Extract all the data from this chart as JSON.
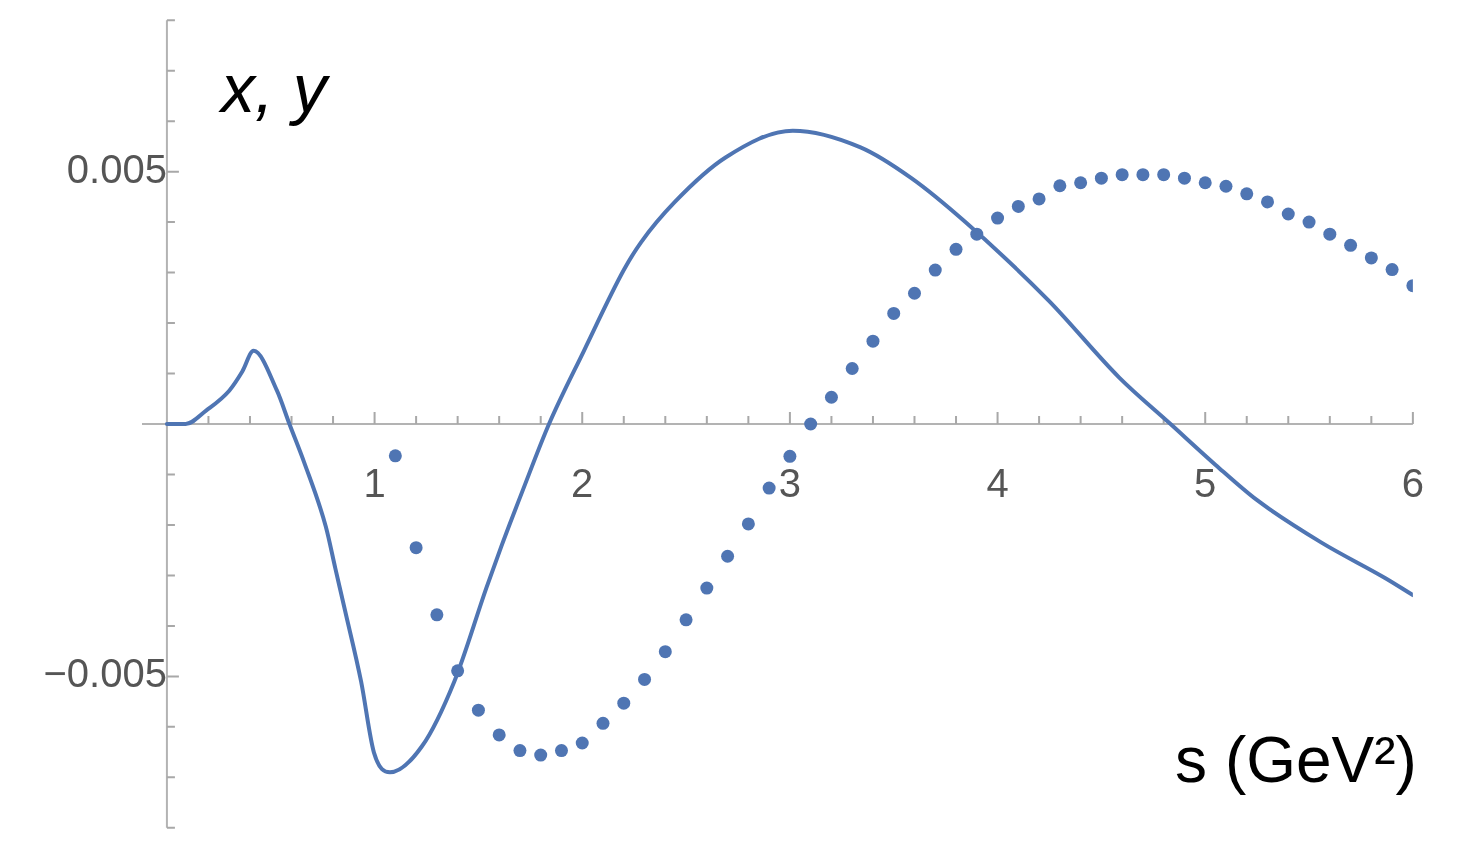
{
  "chart_data": {
    "type": "line",
    "xlabel": "s (GeV²)",
    "ylabel": "x, y",
    "xlim": [
      -0.12,
      6
    ],
    "ylim": [
      -0.008,
      0.008
    ],
    "xticks": [
      {
        "value": 0.2,
        "label": null
      },
      {
        "value": 0.4,
        "label": null
      },
      {
        "value": 0.6,
        "label": null
      },
      {
        "value": 0.8,
        "label": null
      },
      1,
      {
        "value": 1.2,
        "label": null
      },
      {
        "value": 1.4,
        "label": null
      },
      {
        "value": 1.6,
        "label": null
      },
      {
        "value": 1.8,
        "label": null
      },
      2,
      {
        "value": 2.2,
        "label": null
      },
      {
        "value": 2.4,
        "label": null
      },
      {
        "value": 2.6,
        "label": null
      },
      {
        "value": 2.8,
        "label": null
      },
      3,
      {
        "value": 3.2,
        "label": null
      },
      {
        "value": 3.4,
        "label": null
      },
      {
        "value": 3.6,
        "label": null
      },
      {
        "value": 3.8,
        "label": null
      },
      4,
      {
        "value": 4.2,
        "label": null
      },
      {
        "value": 4.4,
        "label": null
      },
      {
        "value": 4.6,
        "label": null
      },
      {
        "value": 4.8,
        "label": null
      },
      5,
      {
        "value": 5.2,
        "label": null
      },
      {
        "value": 5.4,
        "label": null
      },
      {
        "value": 5.6,
        "label": null
      },
      {
        "value": 5.8,
        "label": null
      },
      6
    ],
    "yticks": [
      {
        "value": -0.008,
        "label": null
      },
      {
        "value": -0.007,
        "label": null
      },
      {
        "value": -0.006,
        "label": null
      },
      {
        "value": -0.005,
        "label": "−0.005"
      },
      {
        "value": -0.004,
        "label": null
      },
      {
        "value": -0.003,
        "label": null
      },
      {
        "value": -0.002,
        "label": null
      },
      {
        "value": -0.001,
        "label": null
      },
      {
        "value": 0.001,
        "label": null
      },
      {
        "value": 0.002,
        "label": null
      },
      {
        "value": 0.003,
        "label": null
      },
      {
        "value": 0.004,
        "label": null
      },
      0.005,
      {
        "value": 0.006,
        "label": null
      },
      {
        "value": 0.007,
        "label": null
      },
      {
        "value": 0.008,
        "label": null
      }
    ],
    "series": [
      {
        "color": "#4f75b3",
        "x": [
          0,
          0.09,
          0.19,
          0.3,
          0.363,
          0.417,
          0.53,
          0.59,
          0.66,
          0.765,
          0.811,
          0.858,
          0.935,
          0.997,
          1.074,
          1.229,
          1.384,
          1.538,
          1.61,
          1.713,
          1.84,
          2.007,
          2.2,
          2.283,
          2.446,
          2.69,
          3.014,
          3.34,
          3.585,
          3.845,
          4.245,
          4.586,
          4.833,
          5.05,
          5.25,
          5.56,
          5.87,
          6.0
        ],
        "values": [
          0,
          0,
          0.00027,
          0.00066,
          0.00104,
          0.00145,
          0.00066,
          0,
          -0.00075,
          -0.00203,
          -0.00286,
          -0.0037,
          -0.0051,
          -0.00651,
          -0.0069,
          -0.00638,
          -0.0051,
          -0.00325,
          -0.00243,
          -0.00132,
          0,
          0.00144,
          0.00305,
          0.0036,
          0.0044,
          0.00528,
          0.00581,
          0.00548,
          0.00487,
          0.004,
          0.00245,
          0.00092,
          0,
          -0.00081,
          -0.00151,
          -0.00235,
          -0.00306,
          -0.00339
        ]
      },
      {
        "type": "scatter",
        "color": "#4f75b3",
        "marker": "circle",
        "x": [
          1.1,
          1.2,
          1.3,
          1.4,
          1.5,
          1.6,
          1.7,
          1.8,
          1.9,
          2.0,
          2.1,
          2.2,
          2.3,
          2.4,
          2.5,
          2.6,
          2.7,
          2.8,
          2.9,
          3.0,
          3.1,
          3.2,
          3.3,
          3.4,
          3.5,
          3.6,
          3.7,
          3.8,
          3.9,
          4.0,
          4.1,
          4.2,
          4.3,
          4.4,
          4.5,
          4.6,
          4.7,
          4.8,
          4.9,
          5.0,
          5.1,
          5.2,
          5.3,
          5.4,
          5.5,
          5.6,
          5.7,
          5.8,
          5.9,
          6.0
        ],
        "values": [
          -0.00063,
          -0.00245,
          -0.00378,
          -0.00489,
          -0.00567,
          -0.00616,
          -0.00647,
          -0.00656,
          -0.00647,
          -0.00632,
          -0.00593,
          -0.00553,
          -0.00506,
          -0.00451,
          -0.00388,
          -0.00325,
          -0.00262,
          -0.00198,
          -0.00127,
          -0.00064,
          0,
          0.00053,
          0.0011,
          0.00164,
          0.00219,
          0.00259,
          0.00305,
          0.00346,
          0.00376,
          0.00408,
          0.00431,
          0.00446,
          0.00472,
          0.00478,
          0.00487,
          0.00494,
          0.00494,
          0.00494,
          0.00487,
          0.00478,
          0.00471,
          0.00456,
          0.0044,
          0.00416,
          0.004,
          0.00376,
          0.00354,
          0.00329,
          0.00306,
          0.00274
        ]
      }
    ]
  }
}
